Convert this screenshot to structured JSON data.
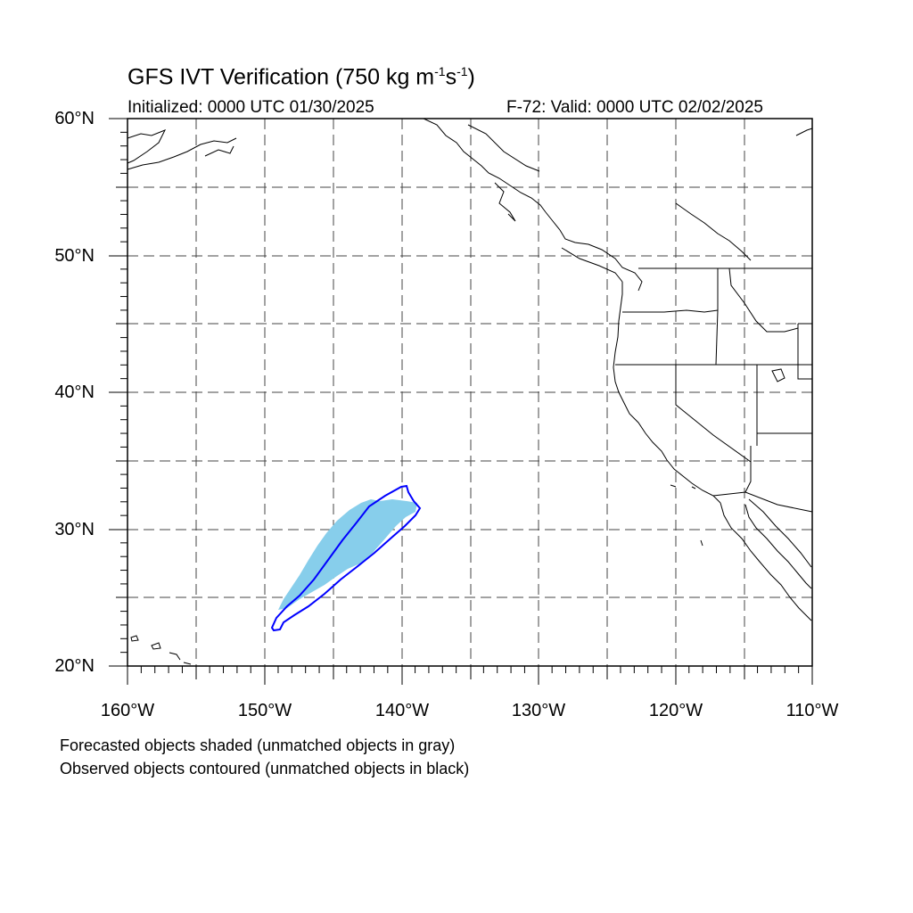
{
  "title": {
    "main": "GFS IVT Verification (750 kg m",
    "sup1": "-1",
    "mid": "s",
    "sup2": "-1",
    "end": ")"
  },
  "initialized": "Initialized: 0000 UTC 01/30/2025",
  "valid": "F-72: Valid: 0000 UTC 02/02/2025",
  "axes": {
    "lat_labels": [
      "60°N",
      "50°N",
      "40°N",
      "30°N",
      "20°N"
    ],
    "lon_labels": [
      "160°W",
      "150°W",
      "140°W",
      "130°W",
      "120°W",
      "110°W"
    ],
    "lat_range": [
      20,
      60
    ],
    "lon_range": [
      -160,
      -110
    ],
    "grid": "dashed, every 5°"
  },
  "legend": {
    "line1": "Forecasted objects shaded (unmatched objects in gray)",
    "line2": "Observed objects contoured (unmatched objects in black)"
  },
  "colors": {
    "forecast_fill": "#87ceeb",
    "observed_contour": "#0000ff",
    "coastline": "#000000"
  }
}
